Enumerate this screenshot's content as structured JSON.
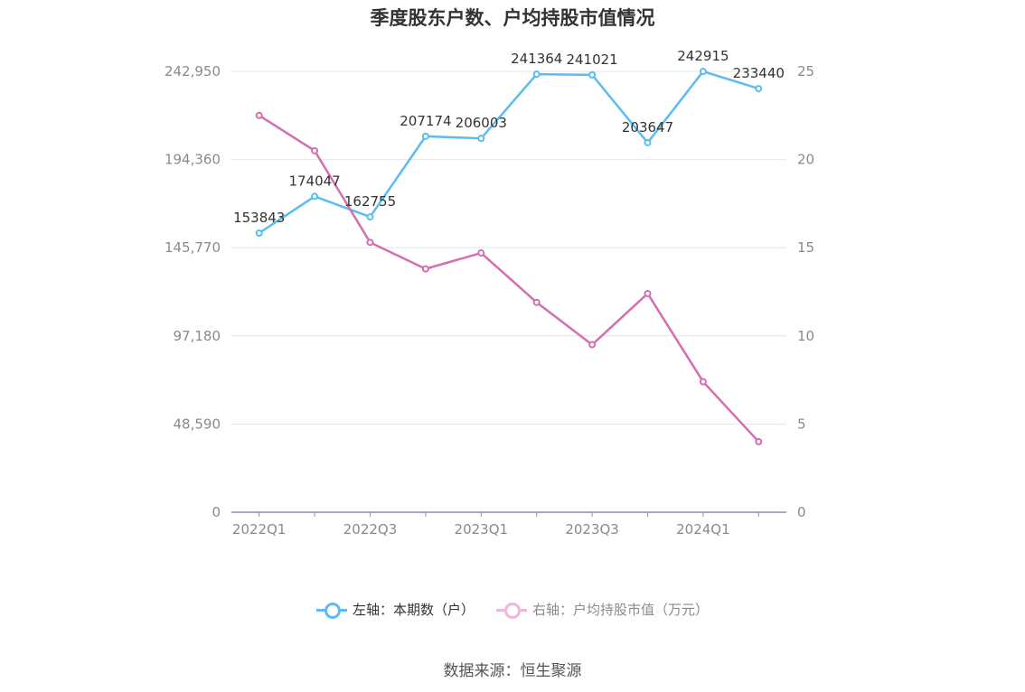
{
  "chart_data": {
    "type": "line",
    "title": "季度股东户数、户均持股市值情况",
    "categories": [
      "2022Q1",
      "2022Q2",
      "2022Q3",
      "2022Q4",
      "2023Q1",
      "2023Q2",
      "2023Q3",
      "2023Q4",
      "2024Q1",
      "2024Q2"
    ],
    "x_tick_labels": [
      "2022Q1",
      "",
      "2022Q3",
      "",
      "2023Q1",
      "",
      "2023Q3",
      "",
      "2024Q1",
      ""
    ],
    "left_axis": {
      "ticks": [
        "0",
        "48,590",
        "97,180",
        "145,770",
        "194,360",
        "242,950"
      ],
      "ylim": [
        0,
        242950
      ]
    },
    "right_axis": {
      "ticks": [
        "0",
        "5",
        "10",
        "15",
        "20",
        "25"
      ],
      "ylim": [
        0,
        25
      ]
    },
    "series": [
      {
        "name": "左轴：本期数（户）",
        "axis": "left",
        "color": "#5bbcef",
        "values": [
          153843,
          174047,
          162755,
          207174,
          206003,
          241364,
          241021,
          203647,
          242915,
          233440
        ],
        "labels": [
          "153843",
          "174047",
          "162755",
          "207174",
          "206003",
          "241364",
          "241021",
          "203647",
          "242915",
          "233440"
        ]
      },
      {
        "name": "右轴：户均持股市值（万元）",
        "axis": "right",
        "color": "#d56db0",
        "values": [
          22.5,
          20.5,
          15.3,
          13.8,
          14.7,
          11.9,
          9.5,
          12.4,
          7.4,
          4.0
        ]
      }
    ],
    "grid": true,
    "legend_position": "bottom"
  },
  "source": "数据来源：恒生聚源"
}
